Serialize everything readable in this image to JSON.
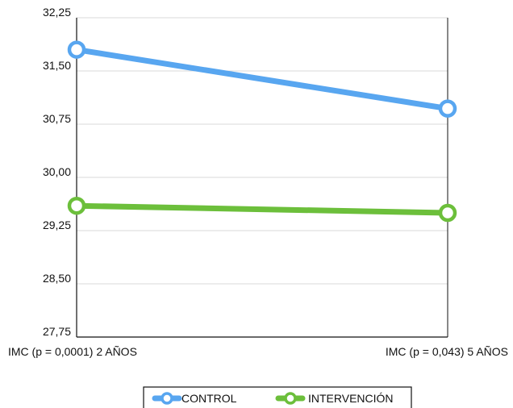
{
  "chart_data": {
    "type": "line",
    "title": "",
    "xlabel": "",
    "ylabel": "",
    "categories": [
      "IMC (p = 0,0001) 2 AÑOS",
      "IMC (p = 0,043) 5 AÑOS"
    ],
    "y_ticks": [
      "32,25",
      "31,50",
      "30,75",
      "30,00",
      "29,25",
      "28,50",
      "27,75"
    ],
    "ylim": [
      27.75,
      32.25
    ],
    "grid": true,
    "legend_position": "bottom",
    "series": [
      {
        "name": "CONTROL",
        "values": [
          31.8,
          30.97
        ],
        "color": "#58A6F0"
      },
      {
        "name": "INTERVENCIÓN",
        "values": [
          29.6,
          29.5
        ],
        "color": "#6CBF3B"
      }
    ]
  }
}
